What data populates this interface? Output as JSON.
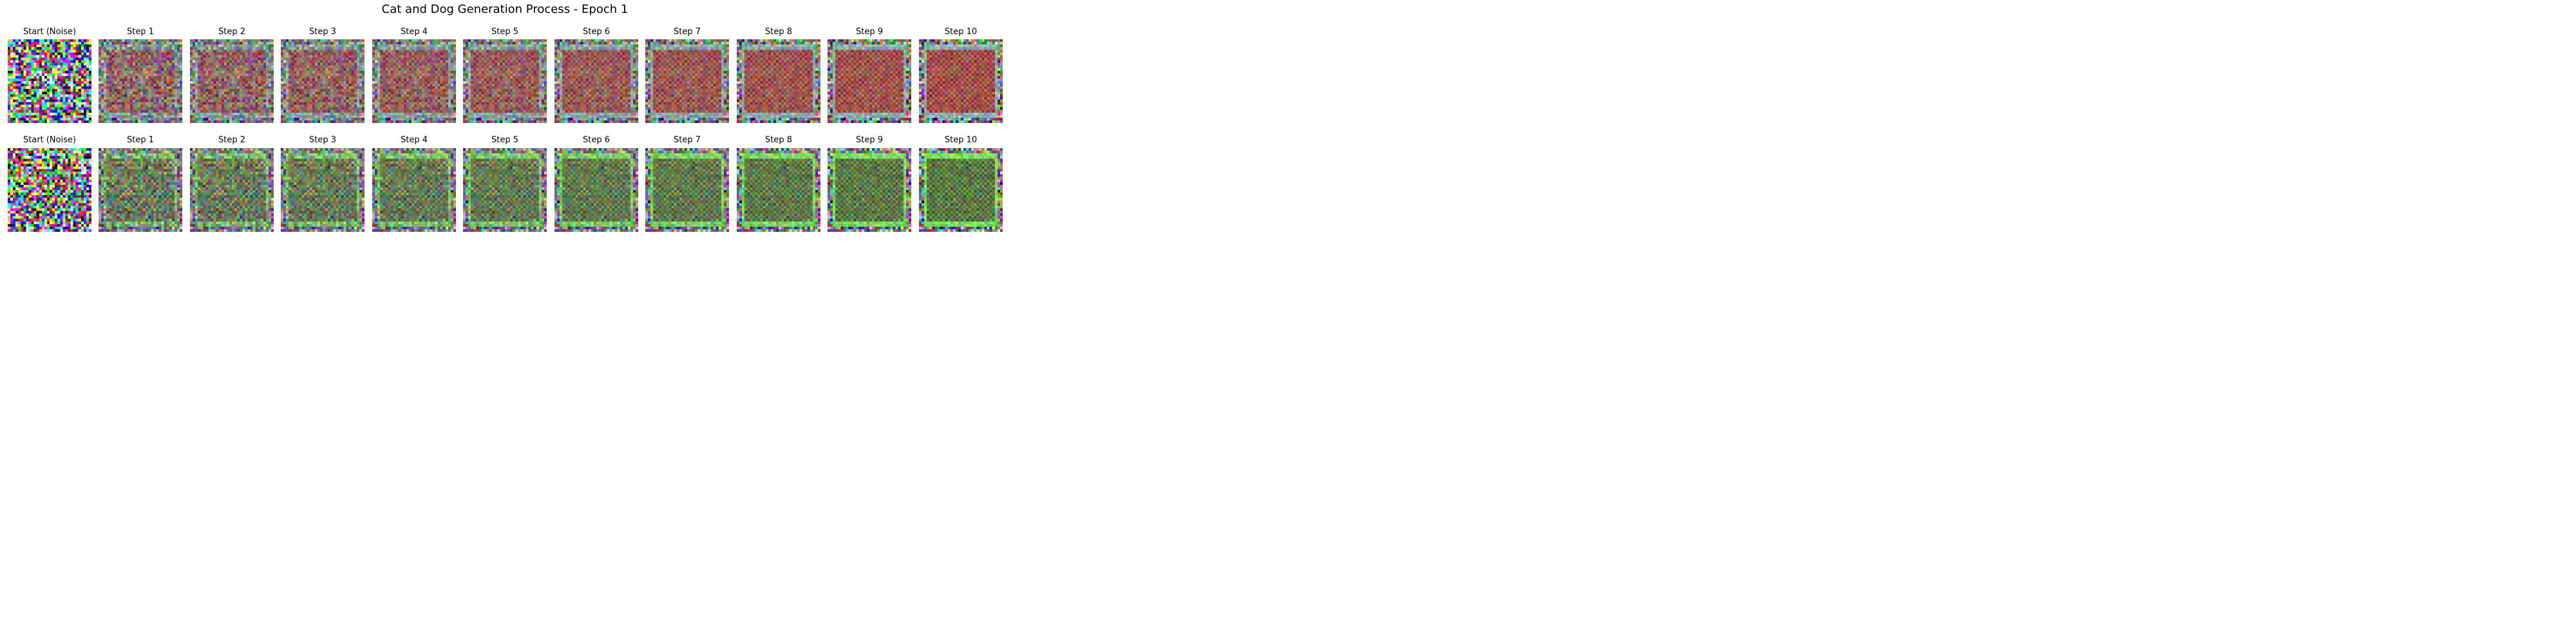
{
  "figure": {
    "title": "Cat and Dog Generation Process - Epoch 1"
  },
  "rows": [
    {
      "palette": "cat",
      "panels": [
        {
          "label": "Start (Noise)",
          "step": 0
        },
        {
          "label": "Step 1",
          "step": 1
        },
        {
          "label": "Step 2",
          "step": 2
        },
        {
          "label": "Step 3",
          "step": 3
        },
        {
          "label": "Step 4",
          "step": 4
        },
        {
          "label": "Step 5",
          "step": 5
        },
        {
          "label": "Step 6",
          "step": 6
        },
        {
          "label": "Step 7",
          "step": 7
        },
        {
          "label": "Step 8",
          "step": 8
        },
        {
          "label": "Step 9",
          "step": 9
        },
        {
          "label": "Step 10",
          "step": 10
        }
      ]
    },
    {
      "palette": "dog",
      "panels": [
        {
          "label": "Start (Noise)",
          "step": 0
        },
        {
          "label": "Step 1",
          "step": 1
        },
        {
          "label": "Step 2",
          "step": 2
        },
        {
          "label": "Step 3",
          "step": 3
        },
        {
          "label": "Step 4",
          "step": 4
        },
        {
          "label": "Step 5",
          "step": 5
        },
        {
          "label": "Step 6",
          "step": 6
        },
        {
          "label": "Step 7",
          "step": 7
        },
        {
          "label": "Step 8",
          "step": 8
        },
        {
          "label": "Step 9",
          "step": 9
        },
        {
          "label": "Step 10",
          "step": 10
        }
      ]
    }
  ],
  "image_resolution": 32,
  "colors": {
    "cat_center": "#a0504a",
    "dog_center": "#5a7a45",
    "cat_frame": "#8fb0b0",
    "dog_frame": "#7de05a"
  }
}
